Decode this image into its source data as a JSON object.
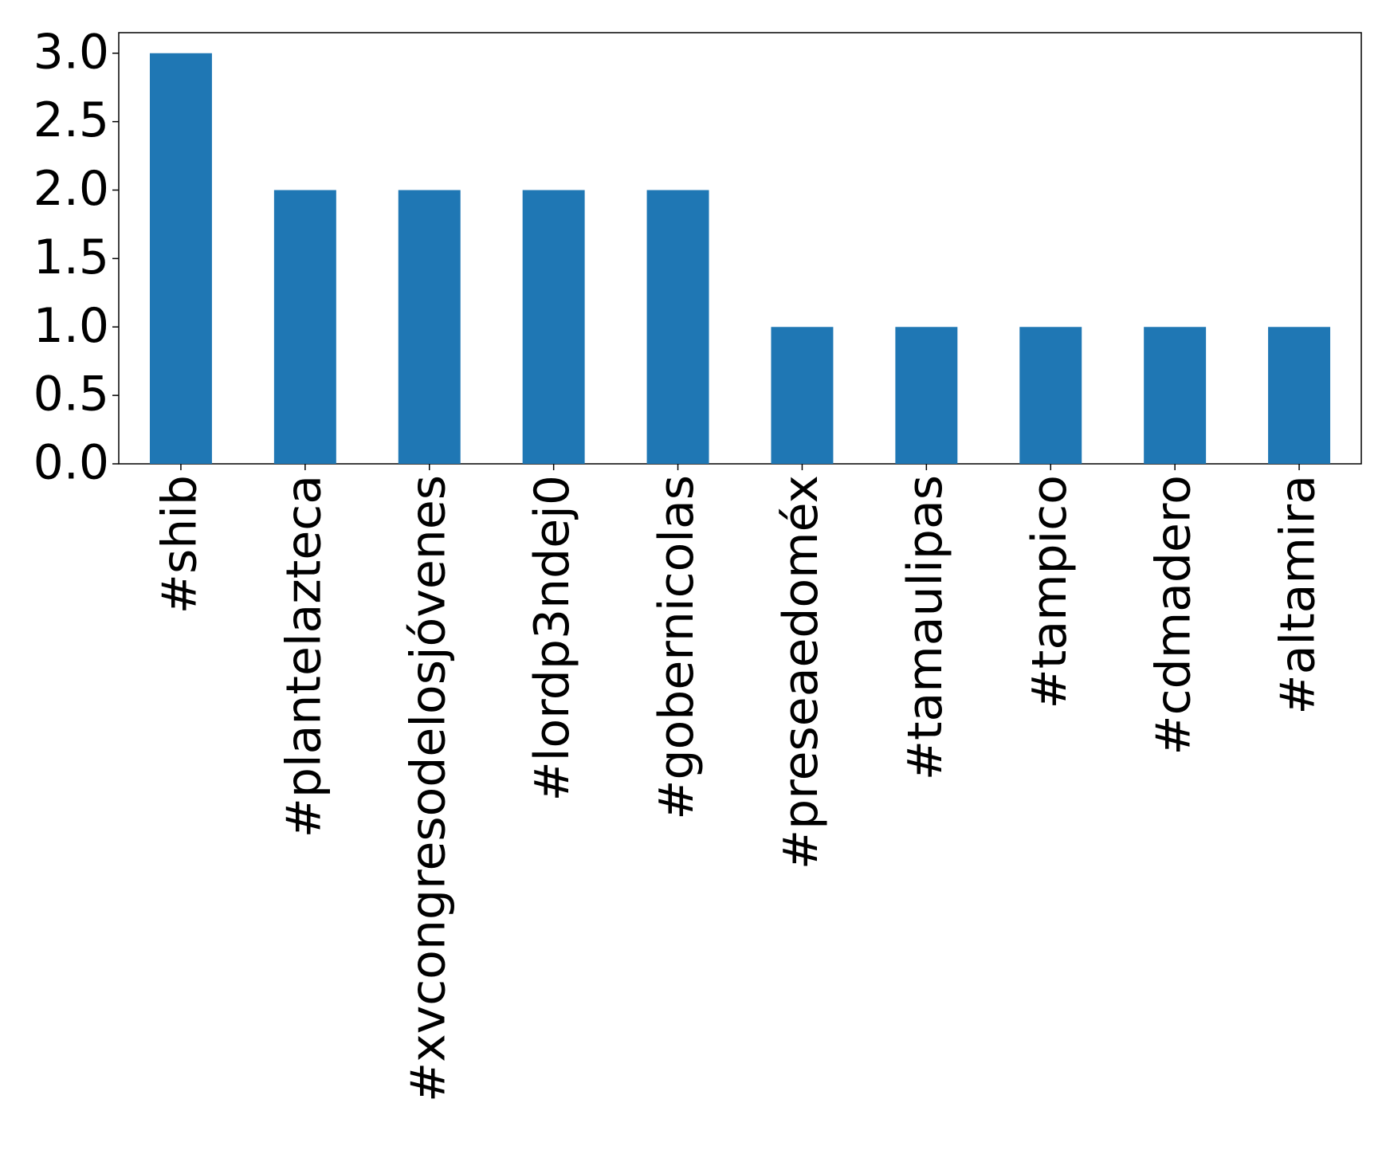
{
  "chart_data": {
    "type": "bar",
    "categories": [
      "#shib",
      "#plantelazteca",
      "#xvcongresodelosjóvenes",
      "#lordp3ndej0",
      "#gobernicolas",
      "#preseaedoméx",
      "#tamaulipas",
      "#tampico",
      "#cdmadero",
      "#altamira"
    ],
    "values": [
      3,
      2,
      2,
      2,
      2,
      1,
      1,
      1,
      1,
      1
    ],
    "color": "#1f77b4",
    "ylim": [
      0,
      3.15
    ],
    "yticks": [
      {
        "value": 0,
        "label": "0.0"
      },
      0.5,
      {
        "value": 1,
        "label": "1.0"
      },
      1.5,
      {
        "value": 2,
        "label": "2.0"
      },
      2.5,
      {
        "value": 3,
        "label": "3.0"
      }
    ],
    "grid": false
  }
}
